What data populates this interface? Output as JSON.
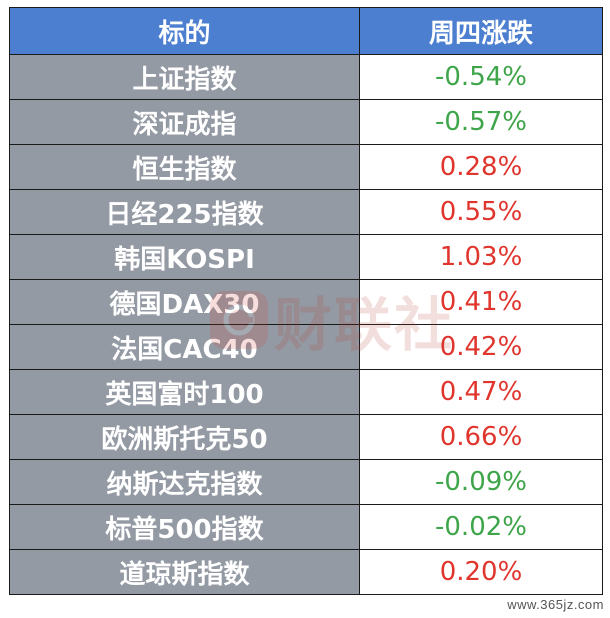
{
  "header": {
    "col1": "标的",
    "col2": "周四涨跌"
  },
  "rows": [
    {
      "name": "上证指数",
      "change": "-0.54%",
      "dir": "down"
    },
    {
      "name": "深证成指",
      "change": "-0.57%",
      "dir": "down"
    },
    {
      "name": "恒生指数",
      "change": "0.28%",
      "dir": "up"
    },
    {
      "name": "日经225指数",
      "change": "0.55%",
      "dir": "up"
    },
    {
      "name": "韩国KOSPI",
      "change": "1.03%",
      "dir": "up"
    },
    {
      "name": "德国DAX30",
      "change": "0.41%",
      "dir": "up"
    },
    {
      "name": "法国CAC40",
      "change": "0.42%",
      "dir": "up"
    },
    {
      "name": "英国富时100",
      "change": "0.47%",
      "dir": "up"
    },
    {
      "name": "欧洲斯托克50",
      "change": "0.66%",
      "dir": "up"
    },
    {
      "name": "纳斯达克指数",
      "change": "-0.09%",
      "dir": "down"
    },
    {
      "name": "标普500指数",
      "change": "-0.02%",
      "dir": "down"
    },
    {
      "name": "道琼斯指数",
      "change": "0.20%",
      "dir": "up"
    }
  ],
  "colors": {
    "header_bg": "#4d7fd0",
    "name_bg": "#949aa4",
    "down": "#3fa54a",
    "up": "#e0352d"
  },
  "watermark": {
    "text": "财联社"
  },
  "site_mark": "www.365jz.com"
}
